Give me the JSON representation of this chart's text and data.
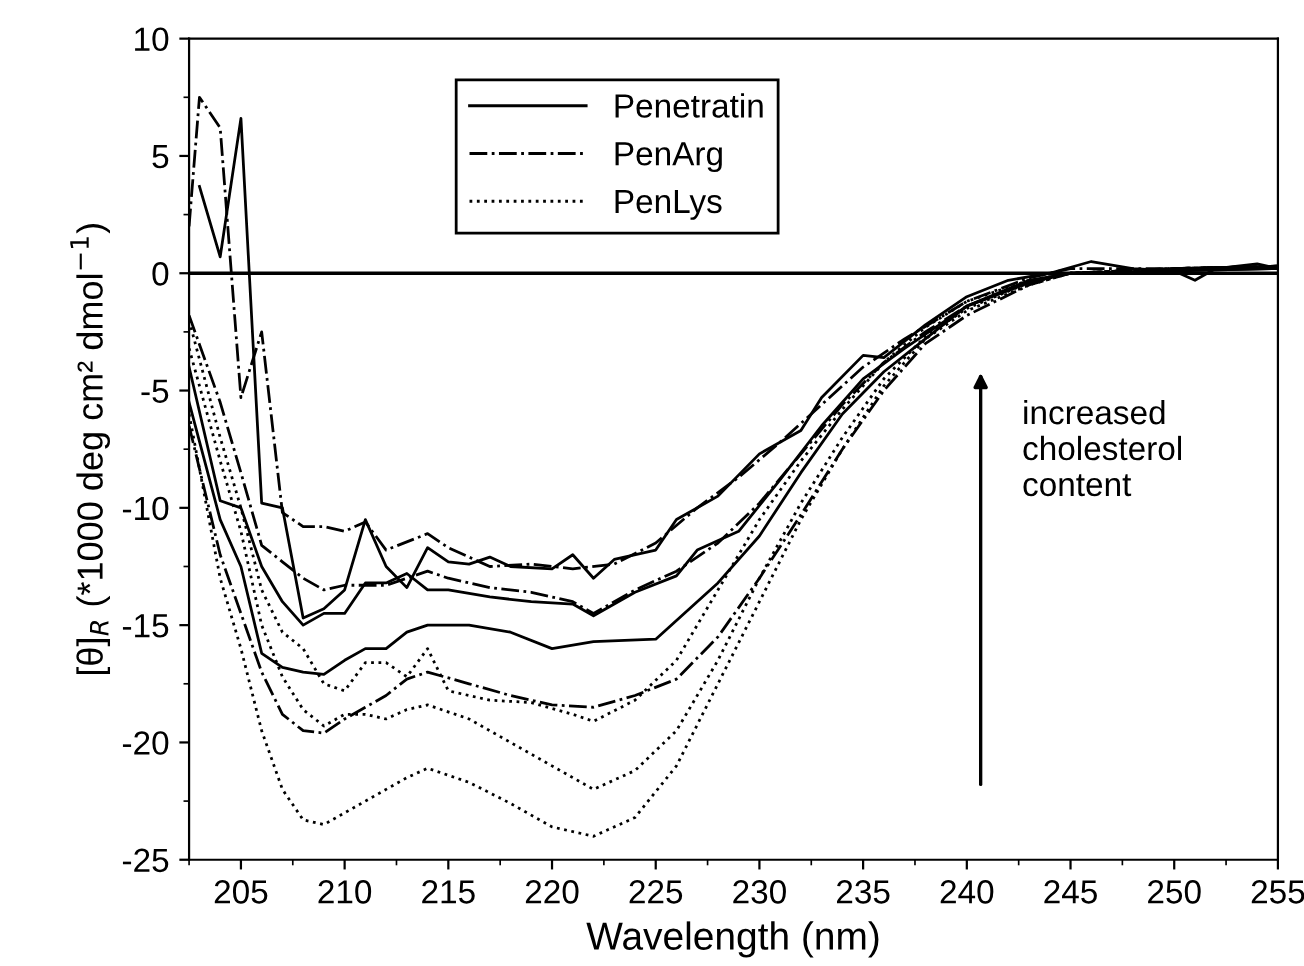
{
  "chart_data": {
    "type": "line",
    "xlabel": "Wavelength (nm)",
    "ylabel": "[θ]$_{R}$ (*1000 deg cm² dmol$^{−1}$)",
    "xlim": [
      202.5,
      255
    ],
    "xticks": [
      205,
      210,
      215,
      220,
      225,
      230,
      235,
      240,
      245,
      250,
      255
    ],
    "ylim": [
      -25,
      10
    ],
    "yticks": [
      -25,
      -20,
      -15,
      -10,
      -5,
      0,
      5,
      10
    ],
    "grid": false,
    "legend": "top",
    "marker": "none",
    "ref_lines": [
      {
        "axis": "y",
        "value": 0,
        "color": "#000000",
        "line_style": "solid"
      }
    ],
    "annotations": [
      "increased\ncholesterol\ncontent"
    ],
    "series": [
      {
        "name": "Penetratin",
        "color": "#000000",
        "line_style": "solid",
        "x": [
          203,
          204,
          205,
          206,
          207,
          208,
          209,
          210,
          211,
          212,
          213,
          214,
          215,
          216,
          217,
          218,
          220,
          221,
          222,
          223,
          225,
          226,
          228,
          230,
          232,
          233,
          235,
          236,
          238,
          240,
          242,
          244,
          246,
          248,
          250,
          251,
          252,
          254,
          255
        ],
        "values": [
          3.7,
          0.7,
          6.6,
          -9.8,
          -10,
          -14.7,
          -14.3,
          -13.5,
          -10.5,
          -12.5,
          -13.4,
          -11.7,
          -12.3,
          -12.4,
          -12.1,
          -12.5,
          -12.6,
          -12.0,
          -13.0,
          -12.2,
          -11.8,
          -10.5,
          -9.5,
          -7.7,
          -6.7,
          -5.3,
          -3.5,
          -3.6,
          -2.2,
          -1.0,
          -0.3,
          0,
          0.5,
          0.2,
          0.1,
          -0.3,
          0.2,
          0.4,
          0.2
        ]
      },
      {
        "color": "#000000",
        "line_style": "solid",
        "x": [
          202.5,
          204,
          205,
          206,
          207,
          208,
          209,
          210,
          211,
          212,
          213,
          214,
          215,
          217,
          219,
          221,
          222,
          224,
          226,
          227,
          229,
          231,
          233,
          235,
          237,
          240,
          243,
          245,
          250,
          255
        ],
        "values": [
          -4,
          -9.7,
          -10,
          -12.5,
          -14,
          -15,
          -14.5,
          -14.5,
          -13.2,
          -13.2,
          -12.8,
          -13.5,
          -13.5,
          -13.8,
          -14,
          -14.1,
          -14.6,
          -13.6,
          -12.9,
          -11.8,
          -11,
          -8.8,
          -6.5,
          -4.5,
          -3.2,
          -1.4,
          -0.3,
          0,
          0.1,
          0.2
        ]
      },
      {
        "color": "#000000",
        "line_style": "solid",
        "x": [
          202.5,
          204,
          205,
          206,
          207,
          208,
          209,
          210,
          211,
          212,
          213,
          214,
          216,
          218,
          220,
          222,
          225,
          228,
          230,
          232,
          234,
          236,
          238,
          240,
          243,
          245,
          250,
          255
        ],
        "values": [
          -5.5,
          -10.5,
          -12.5,
          -16.2,
          -16.8,
          -17,
          -17.1,
          -16.5,
          -16,
          -16,
          -15.3,
          -15,
          -15,
          -15.3,
          -16,
          -15.7,
          -15.6,
          -13.2,
          -11.2,
          -8.5,
          -6,
          -4.2,
          -2.8,
          -1.4,
          -0.4,
          0,
          0.1,
          0.2
        ]
      },
      {
        "name": "PenArg",
        "color": "#000000",
        "line_style": "dashdot",
        "x": [
          202.5,
          203,
          204,
          205,
          206,
          207,
          208,
          209,
          210,
          211,
          212,
          214,
          215,
          217,
          219,
          221,
          223,
          225,
          227,
          229,
          231,
          233,
          235,
          237,
          240,
          243,
          245,
          250,
          255
        ],
        "values": [
          2,
          7.5,
          6.2,
          -5.3,
          -2.5,
          -10.2,
          -10.8,
          -10.8,
          -11,
          -10.6,
          -11.8,
          -11.1,
          -11.7,
          -12.5,
          -12.4,
          -12.6,
          -12.4,
          -11.5,
          -10,
          -8.7,
          -7.2,
          -5.6,
          -4,
          -2.8,
          -1.2,
          -0.2,
          0.2,
          0.2,
          0.3
        ]
      },
      {
        "color": "#000000",
        "line_style": "dashdot",
        "x": [
          202.5,
          204,
          205,
          206,
          207,
          208,
          209,
          210,
          212,
          214,
          215,
          217,
          219,
          221,
          222,
          224,
          226,
          228,
          230,
          232,
          234,
          236,
          238,
          240,
          243,
          245,
          250,
          255
        ],
        "values": [
          -1.8,
          -5.5,
          -8.5,
          -11.6,
          -12.3,
          -13,
          -13.5,
          -13.3,
          -13.3,
          -12.7,
          -13,
          -13.4,
          -13.6,
          -14,
          -14.5,
          -13.5,
          -12.7,
          -11.5,
          -9.8,
          -7.7,
          -5.6,
          -3.8,
          -2.5,
          -1.4,
          -0.4,
          0,
          0.2,
          0.3
        ]
      },
      {
        "color": "#000000",
        "line_style": "dashdot",
        "x": [
          202.5,
          204,
          205,
          206,
          207,
          208,
          209,
          210,
          211,
          212,
          213,
          214,
          216,
          218,
          220,
          222,
          224,
          226,
          228,
          230,
          232,
          234,
          236,
          238,
          240,
          243,
          245,
          250,
          255
        ],
        "values": [
          -6.5,
          -12,
          -14.5,
          -17,
          -18.8,
          -19.5,
          -19.6,
          -19,
          -18.5,
          -18,
          -17.3,
          -17,
          -17.5,
          -18,
          -18.4,
          -18.5,
          -18,
          -17.3,
          -15.5,
          -13,
          -10.3,
          -7.5,
          -5,
          -3,
          -1.8,
          -0.5,
          0,
          0.2,
          0.3
        ]
      },
      {
        "name": "PenLys",
        "color": "#000000",
        "line_style": "dotted",
        "x": [
          202.5,
          204,
          205,
          206,
          207,
          208,
          209,
          210,
          211,
          212,
          213,
          214,
          215,
          217,
          219,
          221,
          222,
          224,
          226,
          228,
          230,
          232,
          234,
          236,
          238,
          240,
          243,
          245,
          250,
          255
        ],
        "values": [
          -2,
          -7,
          -10,
          -13.5,
          -15.3,
          -16,
          -17.5,
          -17.8,
          -16.6,
          -16.6,
          -17.2,
          -16,
          -17.8,
          -18.2,
          -18.3,
          -18.8,
          -19.1,
          -18.2,
          -16.5,
          -13.5,
          -10.5,
          -8,
          -5.8,
          -3.8,
          -2.3,
          -1.2,
          -0.3,
          0,
          0.2,
          0.3
        ]
      },
      {
        "color": "#000000",
        "line_style": "dotted",
        "x": [
          202.5,
          204,
          205,
          206,
          207,
          208,
          209,
          210,
          211,
          212,
          213,
          214,
          216,
          218,
          220,
          222,
          224,
          226,
          228,
          230,
          232,
          234,
          236,
          238,
          240,
          243,
          245,
          250,
          255
        ],
        "values": [
          -3.2,
          -8,
          -11,
          -15,
          -17.2,
          -18.6,
          -19.3,
          -18.8,
          -18.8,
          -19,
          -18.6,
          -18.4,
          -19,
          -20,
          -21,
          -22,
          -21.2,
          -19.5,
          -16.5,
          -13,
          -9.8,
          -7,
          -4.5,
          -2.7,
          -1.5,
          -0.4,
          0,
          0.2,
          0.3
        ]
      },
      {
        "color": "#000000",
        "line_style": "dotted",
        "x": [
          202.5,
          204,
          205,
          206,
          207,
          208,
          209,
          210,
          211,
          212,
          213,
          214,
          216,
          218,
          220,
          222,
          224,
          226,
          228,
          230,
          232,
          234,
          236,
          238,
          240,
          243,
          245,
          250,
          255
        ],
        "values": [
          -6,
          -13,
          -16,
          -19.5,
          -22,
          -23.3,
          -23.5,
          -23,
          -22.5,
          -22,
          -21.5,
          -21.1,
          -21.7,
          -22.6,
          -23.6,
          -24,
          -23.2,
          -21,
          -17.5,
          -14,
          -10.5,
          -7.5,
          -4.8,
          -2.8,
          -1.6,
          -0.5,
          0,
          0.2,
          0.3
        ]
      }
    ]
  }
}
